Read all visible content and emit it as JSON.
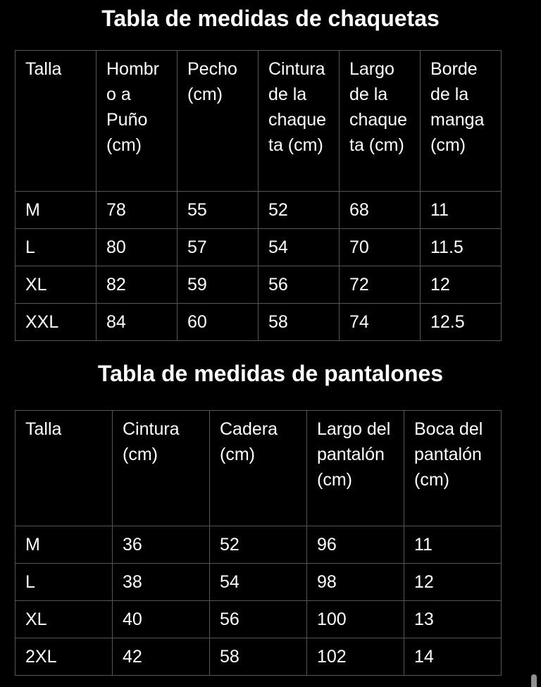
{
  "page": {
    "background_color": "#000000",
    "text_color": "#ffffff",
    "table_border_color": "#555555",
    "scrollbar_thumb_color": "#919191"
  },
  "jackets_table": {
    "title": "Tabla de medidas de chaquetas",
    "columns": [
      "Talla",
      "Hombro a Puño (cm)",
      "Pecho (cm)",
      "Cintura de la chaqueta (cm)",
      "Largo de la chaqueta (cm)",
      "Borde de la manga (cm)"
    ],
    "rows": [
      [
        "M",
        "78",
        "55",
        "52",
        "68",
        "11"
      ],
      [
        "L",
        "80",
        "57",
        "54",
        "70",
        "11.5"
      ],
      [
        "XL",
        "82",
        "59",
        "56",
        "72",
        "12"
      ],
      [
        "XXL",
        "84",
        "60",
        "58",
        "74",
        "12.5"
      ]
    ]
  },
  "pants_table": {
    "title": "Tabla de medidas de pantalones",
    "columns": [
      "Talla",
      "Cintura (cm)",
      "Cadera (cm)",
      "Largo del pantalón (cm)",
      "Boca del pantalón (cm)"
    ],
    "rows": [
      [
        "M",
        "36",
        "52",
        "96",
        "11"
      ],
      [
        "L",
        "38",
        "54",
        "98",
        "12"
      ],
      [
        "XL",
        "40",
        "56",
        "100",
        "13"
      ],
      [
        "2XL",
        "42",
        "58",
        "102",
        "14"
      ]
    ]
  }
}
